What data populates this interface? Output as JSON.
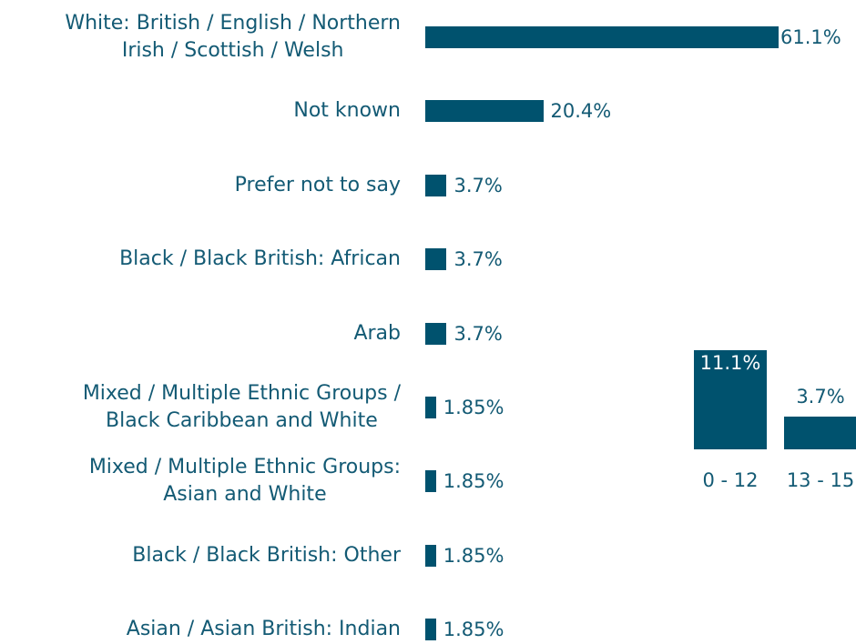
{
  "chart_data": [
    {
      "type": "hbar",
      "categories": [
        "White: British / English / Northern\nIrish / Scottish / Welsh",
        "Not known",
        "Prefer not to say",
        "Black / Black British: African",
        "Arab",
        "Mixed / Multiple Ethnic Groups /\nBlack Caribbean and White",
        "Mixed / Multiple Ethnic Groups:\nAsian and White",
        "Black / Black British: Other",
        "Asian / Asian British: Indian"
      ],
      "values": [
        61.1,
        20.4,
        3.7,
        3.7,
        3.7,
        1.85,
        1.85,
        1.85,
        1.85
      ],
      "value_labels": [
        "61.1%",
        "20.4%",
        "3.7%",
        "3.7%",
        "3.7%",
        "1.85%",
        "1.85%",
        "1.85%",
        "1.85%"
      ],
      "color": "#00526e"
    },
    {
      "type": "bar",
      "categories": [
        "0 - 12",
        "13 - 15"
      ],
      "values": [
        11.1,
        3.7
      ],
      "value_labels": [
        "11.1%",
        "3.7%"
      ],
      "color": "#00526e"
    }
  ]
}
